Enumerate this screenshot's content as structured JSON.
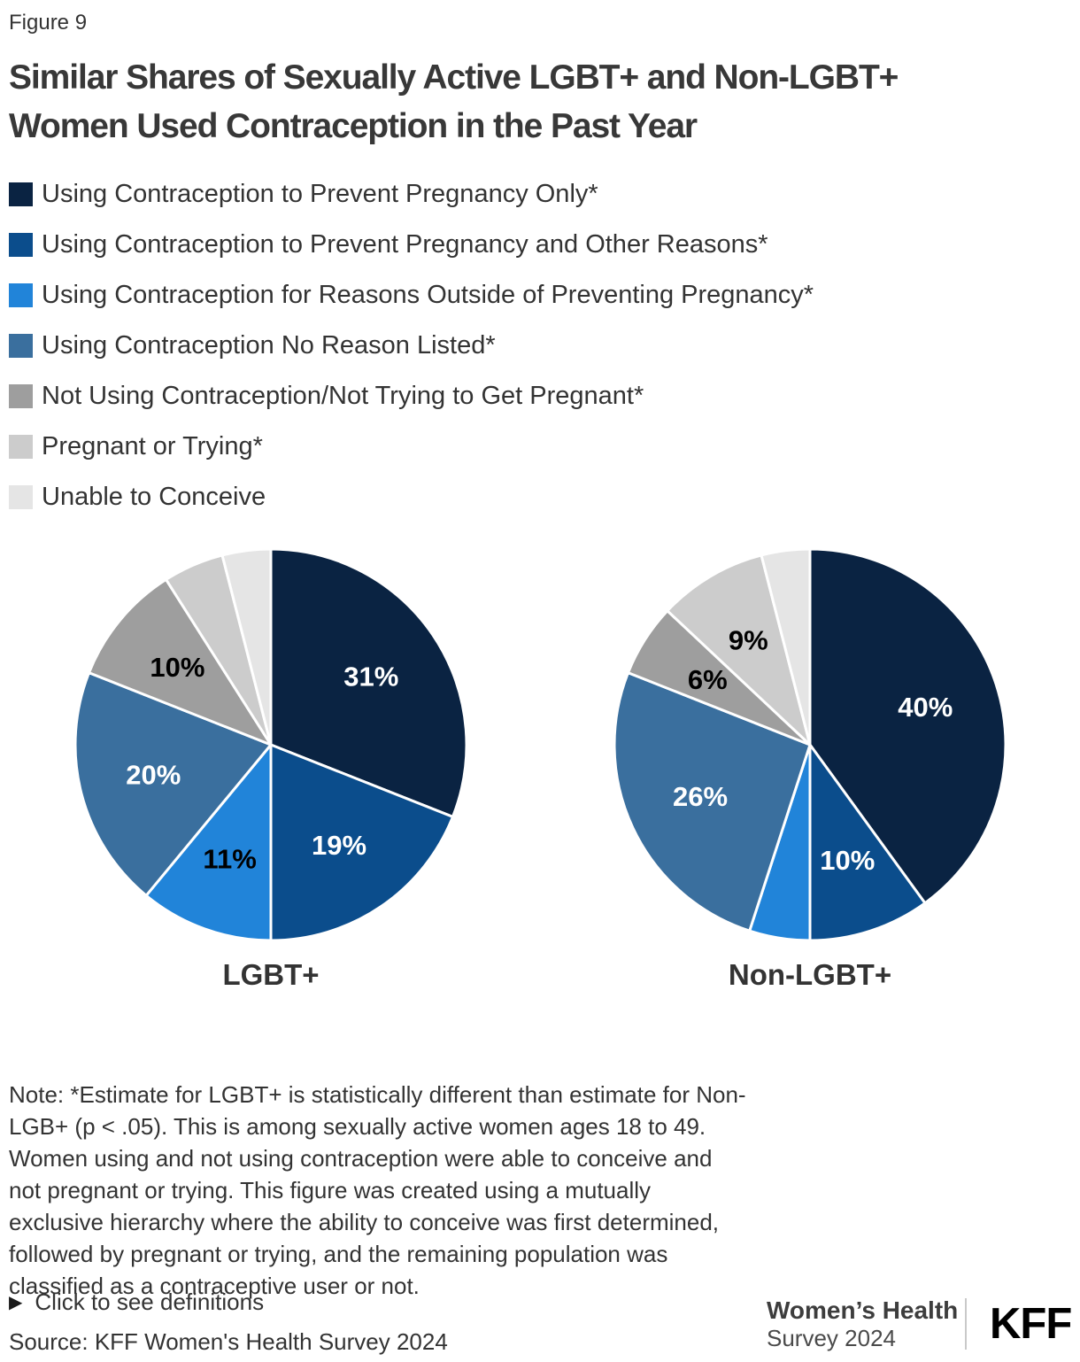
{
  "figure_label": "Figure 9",
  "title": "Similar Shares of Sexually Active LGBT+ and Non-LGBT+\nWomen Used Contraception in the Past Year",
  "legend": {
    "items": [
      {
        "label": "Using Contraception to Prevent Pregnancy Only*",
        "color": "#0a2342",
        "label_color": "#ffffff"
      },
      {
        "label": "Using Contraception to Prevent Pregnancy and Other Reasons*",
        "color": "#0b4d8c",
        "label_color": "#ffffff"
      },
      {
        "label": "Using Contraception for Reasons Outside of Preventing Pregnancy*",
        "color": "#2184d9",
        "label_color": "#000000"
      },
      {
        "label": "Using Contraception No Reason Listed*",
        "color": "#3a6f9e",
        "label_color": "#ffffff"
      },
      {
        "label": "Not Using Contraception/Not Trying to Get Pregnant*",
        "color": "#9e9e9e",
        "label_color": "#000000"
      },
      {
        "label": "Pregnant or Trying*",
        "color": "#cccccc",
        "label_color": "#000000"
      },
      {
        "label": "Unable to Conceive",
        "color": "#e5e5e5",
        "label_color": "#000000"
      }
    ]
  },
  "chart_data": {
    "type": "pie",
    "categories": [
      "Using Contraception to Prevent Pregnancy Only*",
      "Using Contraception to Prevent Pregnancy and Other Reasons*",
      "Using Contraception for Reasons Outside of Preventing Pregnancy*",
      "Using Contraception No Reason Listed*",
      "Not Using Contraception/Not Trying to Get Pregnant*",
      "Pregnant or Trying*",
      "Unable to Conceive"
    ],
    "legend_position": "top-left",
    "pies": [
      {
        "name": "LGBT+",
        "values": [
          31,
          19,
          11,
          20,
          10,
          5,
          4
        ],
        "display_labels": [
          "31%",
          "19%",
          "11%",
          "20%",
          "10%",
          "",
          ""
        ]
      },
      {
        "name": "Non-LGBT+",
        "values": [
          40,
          10,
          5,
          26,
          6,
          9,
          4
        ],
        "display_labels": [
          "40%",
          "10%",
          "",
          "26%",
          "6%",
          "9%",
          ""
        ]
      }
    ]
  },
  "note": "Note: *Estimate for LGBT+ is statistically different than estimate for Non-\nLGB+ (p < .05). This is among sexually active women ages 18 to 49.\nWomen using and not using contraception were able to conceive and\nnot pregnant or trying. This figure was created using a mutually\nexclusive hierarchy where the ability to conceive was first determined,\nfollowed by pregnant or trying, and the remaining population was\nclassified as a contraceptive user or not.",
  "definitions_icon": "▶",
  "definitions_label": "Click to see definitions",
  "source": "Source: KFF Women's Health Survey 2024",
  "footer": {
    "program": "Women’s Health",
    "survey": "Survey 2024",
    "logo": "KFF"
  }
}
